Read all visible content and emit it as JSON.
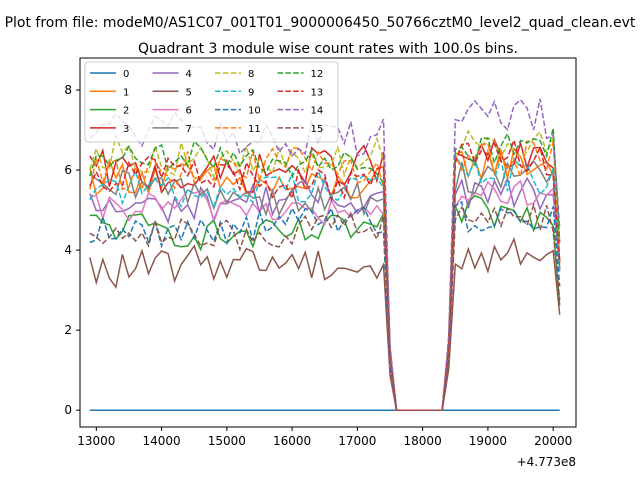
{
  "chart_data": {
    "type": "line",
    "suptitle": "Plot from file: modeM0/AS1C07_001T01_9000006450_50766cztM0_level2_quad_clean.evt",
    "title": "Quadrant 3 module wise count rates with 100.0s bins.",
    "xlabel": "",
    "ylabel": "",
    "x_offset_label": "+4.773e8",
    "xlim": [
      12750,
      20350
    ],
    "ylim": [
      -0.42,
      8.8
    ],
    "xticks": [
      13000,
      14000,
      15000,
      16000,
      17000,
      18000,
      19000,
      20000
    ],
    "yticks": [
      0,
      2,
      4,
      6,
      8
    ],
    "x_start": 12900,
    "x_step": 100,
    "x_end": 20100,
    "gap": [
      17600,
      18350
    ],
    "legend": {
      "location": "top-left",
      "columns": 4
    },
    "series": [
      {
        "name": "0",
        "style": "solid",
        "color": "#1f77b4",
        "base": 0.0,
        "amp": 0.0
      },
      {
        "name": "1",
        "style": "solid",
        "color": "#ff7f0e",
        "base": 5.7,
        "amp": 0.45
      },
      {
        "name": "2",
        "style": "solid",
        "color": "#2ca02c",
        "base": 4.5,
        "amp": 0.4
      },
      {
        "name": "3",
        "style": "solid",
        "color": "#d62728",
        "base": 6.0,
        "amp": 0.5
      },
      {
        "name": "4",
        "style": "solid",
        "color": "#9467bd",
        "base": 5.2,
        "amp": 0.45
      },
      {
        "name": "5",
        "style": "solid",
        "color": "#8c564b",
        "base": 3.6,
        "amp": 0.45
      },
      {
        "name": "6",
        "style": "solid",
        "color": "#e377c2",
        "base": 5.0,
        "amp": 0.4
      },
      {
        "name": "7",
        "style": "solid",
        "color": "#7f7f7f",
        "base": 5.4,
        "amp": 0.45
      },
      {
        "name": "8",
        "style": "dashed",
        "color": "#bcbd22",
        "base": 6.3,
        "amp": 0.45
      },
      {
        "name": "9",
        "style": "dashed",
        "color": "#17becf",
        "base": 5.6,
        "amp": 0.45
      },
      {
        "name": "10",
        "style": "dashed",
        "color": "#1f77b4",
        "base": 4.6,
        "amp": 0.4
      },
      {
        "name": "11",
        "style": "dashed",
        "color": "#ff7f0e",
        "base": 6.0,
        "amp": 0.45
      },
      {
        "name": "12",
        "style": "dashed",
        "color": "#2ca02c",
        "base": 6.2,
        "amp": 0.4
      },
      {
        "name": "13",
        "style": "dashed",
        "color": "#d62728",
        "base": 5.8,
        "amp": 0.45
      },
      {
        "name": "14",
        "style": "dashed",
        "color": "#9467bd",
        "base": 6.9,
        "amp": 0.5
      },
      {
        "name": "15",
        "style": "dashed",
        "color": "#8c564b",
        "base": 4.5,
        "amp": 0.4
      }
    ]
  }
}
